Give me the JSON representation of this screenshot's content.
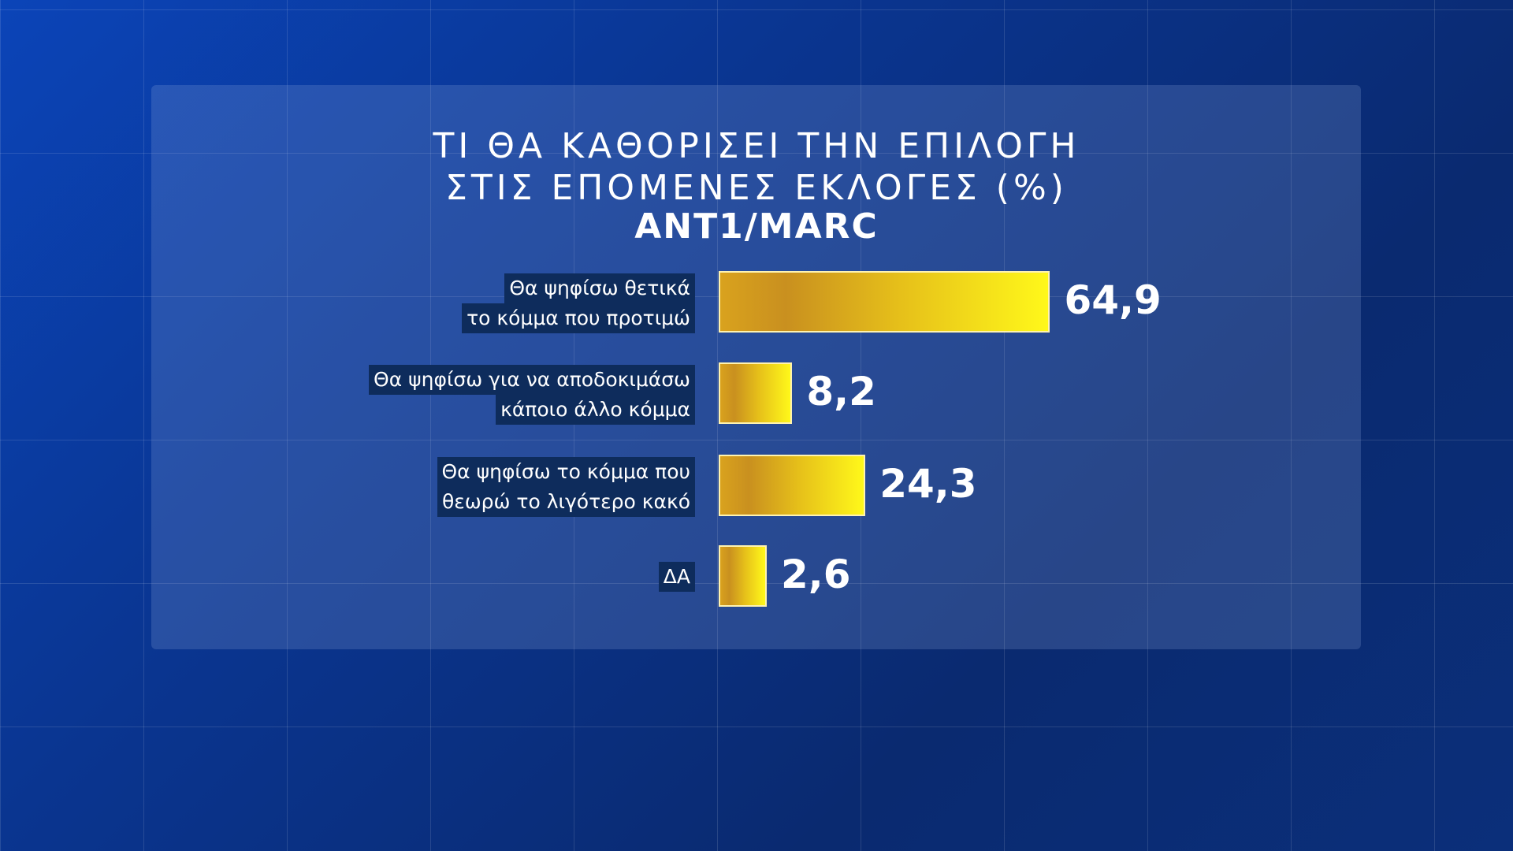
{
  "chart_data": {
    "type": "bar",
    "orientation": "horizontal",
    "title_lines": [
      "ΤΙ ΘΑ ΚΑΘΟΡΙΣΕΙ ΤΗΝ ΕΠΙΛΟΓΗ",
      "ΣΤΙΣ ΕΠΟΜΕΝΕΣ ΕΚΛΟΓΕΣ (%)"
    ],
    "subtitle": "ANT1/MARC",
    "categories": [
      [
        "Θα ψηφίσω θετικά",
        "το κόμμα που προτιμώ"
      ],
      [
        "Θα ψηφίσω για να αποδοκιμάσω",
        "κάποιο άλλο κόμμα"
      ],
      [
        "Θα ψηφίσω το κόμμα που",
        "θεωρώ το λιγότερο κακό"
      ],
      [
        "ΔΑ"
      ]
    ],
    "values": [
      64.9,
      8.2,
      24.3,
      2.6
    ],
    "value_labels": [
      "64,9",
      "8,2",
      "24,3",
      "2,6"
    ],
    "bar_color": "#f0d81a",
    "grid": false
  }
}
